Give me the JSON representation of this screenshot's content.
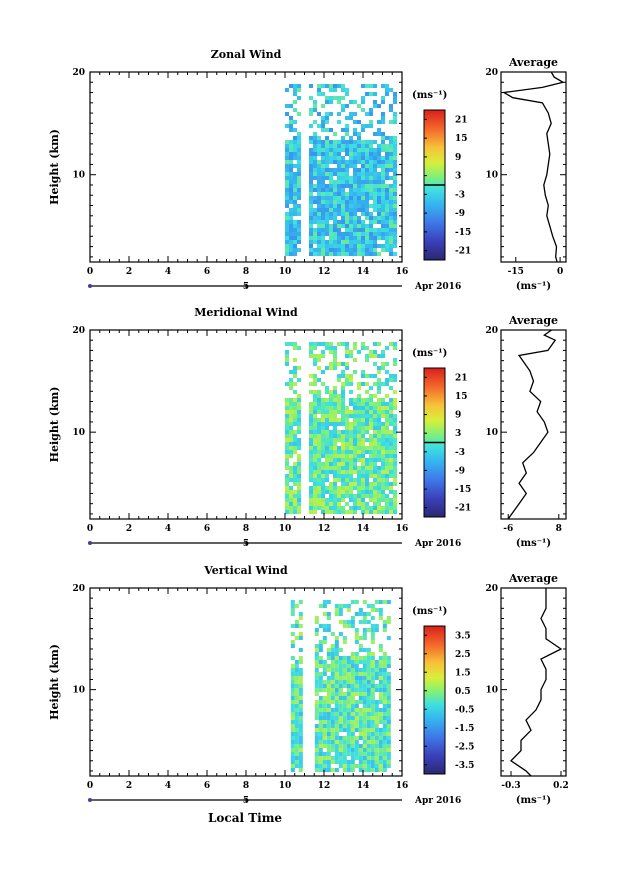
{
  "figure": {
    "date_label": "Apr 2016",
    "xlabel": "Local Time",
    "ylabel": "Height (km)",
    "colorbar_unit": "(ms⁻¹)",
    "avg_title": "Average",
    "avg_unit": "(ms⁻¹)",
    "date_axis_tick": "5"
  },
  "chart_data": [
    {
      "type": "heatmap",
      "title": "Zonal Wind",
      "xlabel": "",
      "ylabel": "Height (km)",
      "xlim": [
        0,
        16
      ],
      "ylim": [
        1.5,
        20
      ],
      "x_ticks": [
        "0",
        "2",
        "4",
        "6",
        "8",
        "10",
        "12",
        "14",
        "16"
      ],
      "y_ticks": [
        "10",
        "20"
      ],
      "date_label": "Apr 2016",
      "data_start_hour": 10.0,
      "data_end_hour": 15.6,
      "gap_hours": [
        [
          10.8,
          11.1
        ]
      ],
      "typical_value": -4,
      "colorbar": {
        "unit": "(ms⁻¹)",
        "min": -24,
        "max": 24,
        "ticks": [
          "21",
          "15",
          "9",
          "3",
          "-3",
          "-9",
          "-15",
          "-21"
        ],
        "zero_contour": true
      },
      "average_profile": {
        "title": "Average",
        "unit": "(ms⁻¹)",
        "xlim": [
          -20,
          2
        ],
        "x_ticks": [
          "-15",
          "0"
        ],
        "heights": [
          1.5,
          2,
          3,
          4,
          5,
          6,
          7,
          8,
          9,
          10,
          11,
          12,
          13,
          14,
          15,
          16,
          17,
          17.5,
          18,
          18.5,
          19,
          19.5,
          20
        ],
        "values": [
          -1,
          -1.5,
          -1.2,
          -2.5,
          -3.5,
          -4.5,
          -4,
          -5,
          -5.5,
          -4.5,
          -4,
          -3.5,
          -4,
          -4.5,
          -3,
          -4,
          -6,
          -16,
          -19,
          -6,
          1,
          -2,
          -3
        ]
      }
    },
    {
      "type": "heatmap",
      "title": "Meridional Wind",
      "xlabel": "",
      "ylabel": "Height (km)",
      "xlim": [
        0,
        16
      ],
      "ylim": [
        1.5,
        20
      ],
      "x_ticks": [
        "0",
        "2",
        "4",
        "6",
        "8",
        "10",
        "12",
        "14",
        "16"
      ],
      "y_ticks": [
        "10",
        "20"
      ],
      "date_label": "Apr 2016",
      "data_start_hour": 10.0,
      "data_end_hour": 15.6,
      "gap_hours": [
        [
          10.8,
          11.1
        ]
      ],
      "typical_value": 1,
      "colorbar": {
        "unit": "(ms⁻¹)",
        "min": -24,
        "max": 24,
        "ticks": [
          "21",
          "15",
          "9",
          "3",
          "-3",
          "-9",
          "-15",
          "-21"
        ],
        "zero_contour": true
      },
      "average_profile": {
        "title": "Average",
        "unit": "(ms⁻¹)",
        "xlim": [
          -8,
          10
        ],
        "x_ticks": [
          "-6",
          "8"
        ],
        "heights": [
          1.5,
          2,
          3,
          4,
          5,
          6,
          7,
          8,
          9,
          10,
          11,
          12,
          13,
          14,
          15,
          16,
          17,
          17.5,
          18,
          18.5,
          19,
          19.5,
          20
        ],
        "values": [
          -6,
          -5,
          -3,
          -1,
          -3,
          -1,
          -2,
          1,
          3,
          5,
          4,
          2,
          3,
          0,
          1,
          0,
          -2,
          -3,
          5,
          6,
          7,
          4,
          6
        ]
      }
    },
    {
      "type": "heatmap",
      "title": "Vertical Wind",
      "xlabel": "Local Time",
      "ylabel": "Height (km)",
      "xlim": [
        0,
        16
      ],
      "ylim": [
        1.5,
        20
      ],
      "x_ticks": [
        "0",
        "2",
        "4",
        "6",
        "8",
        "10",
        "12",
        "14",
        "16"
      ],
      "y_ticks": [
        "10",
        "20"
      ],
      "date_label": "Apr 2016",
      "data_start_hour": 10.3,
      "data_end_hour": 15.4,
      "gap_hours": [
        [
          10.8,
          11.4
        ]
      ],
      "typical_value": 0,
      "colorbar": {
        "unit": "(ms⁻¹)",
        "min": -4,
        "max": 4,
        "ticks": [
          "3.5",
          "2.5",
          "1.5",
          "0.5",
          "-0.5",
          "-1.5",
          "-2.5",
          "-3.5"
        ],
        "zero_contour": false
      },
      "average_profile": {
        "title": "Average",
        "unit": "(ms⁻¹)",
        "xlim": [
          -0.4,
          0.25
        ],
        "x_ticks": [
          "-0.3",
          "0.2"
        ],
        "heights": [
          1.5,
          2,
          3,
          4,
          5,
          6,
          7,
          8,
          9,
          10,
          11,
          12,
          13,
          14,
          15,
          16,
          17,
          18,
          19,
          20
        ],
        "values": [
          -0.1,
          -0.15,
          -0.3,
          -0.2,
          -0.2,
          -0.1,
          -0.15,
          -0.05,
          0,
          0,
          0.05,
          0.05,
          0,
          0.2,
          0.05,
          0.05,
          0,
          0.05,
          0.05,
          0.05
        ]
      }
    }
  ]
}
